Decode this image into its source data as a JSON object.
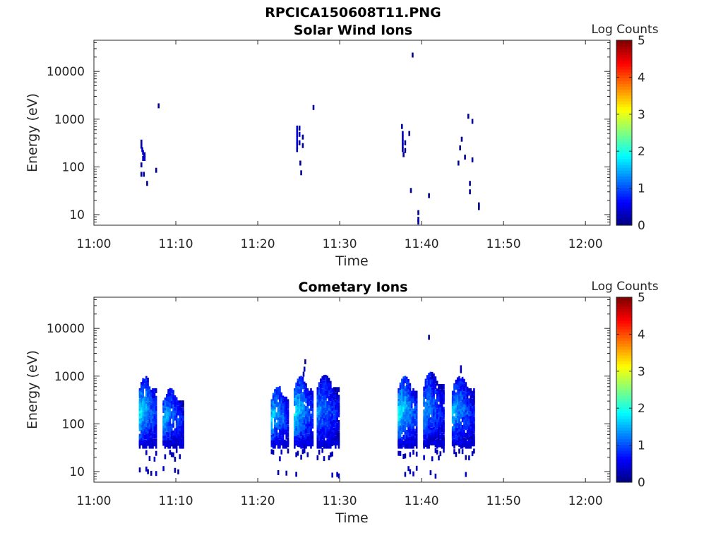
{
  "figure": {
    "title": "RPCICA150608T11.PNG"
  },
  "chart_data": [
    {
      "type": "heatmap",
      "title": "Solar Wind Ions",
      "xlabel": "Time",
      "ylabel": "Energy (eV)",
      "xticks": [
        "11:00",
        "11:10",
        "11:20",
        "11:30",
        "11:40",
        "11:50",
        "12:00"
      ],
      "xlim_minutes": [
        0,
        63
      ],
      "yscale": "log",
      "ylim": [
        6,
        45000
      ],
      "yticks": [
        "10",
        "100",
        "1000",
        "10000"
      ],
      "colorbar": {
        "label": "Log Counts",
        "min": 0,
        "max": 5,
        "ticks": [
          "0",
          "1",
          "2",
          "3",
          "4",
          "5"
        ]
      },
      "cells": [
        [
          5.8,
          330,
          0.2
        ],
        [
          5.8,
          270,
          0.3
        ],
        [
          5.9,
          230,
          0.3
        ],
        [
          6.0,
          200,
          0.4
        ],
        [
          6.1,
          170,
          0.3
        ],
        [
          6.0,
          150,
          0.4
        ],
        [
          6.2,
          180,
          0.2
        ],
        [
          6.2,
          150,
          0.3
        ],
        [
          5.8,
          110,
          0.2
        ],
        [
          5.8,
          70,
          0.2
        ],
        [
          6.1,
          70,
          0.2
        ],
        [
          6.5,
          45,
          0.1
        ],
        [
          7.6,
          85,
          0.1
        ],
        [
          7.9,
          1900,
          0.1
        ],
        [
          24.8,
          650,
          0.3
        ],
        [
          24.8,
          550,
          0.4
        ],
        [
          24.8,
          450,
          0.4
        ],
        [
          24.8,
          380,
          0.5
        ],
        [
          24.8,
          320,
          0.4
        ],
        [
          24.8,
          270,
          0.3
        ],
        [
          24.8,
          230,
          0.2
        ],
        [
          25.1,
          650,
          0.2
        ],
        [
          25.1,
          480,
          0.3
        ],
        [
          25.1,
          320,
          0.2
        ],
        [
          25.5,
          420,
          0.1
        ],
        [
          25.5,
          280,
          0.1
        ],
        [
          25.2,
          120,
          0.1
        ],
        [
          25.3,
          75,
          0.1
        ],
        [
          26.8,
          1750,
          0.1
        ],
        [
          37.6,
          700,
          0.2
        ],
        [
          37.7,
          500,
          0.3
        ],
        [
          37.7,
          400,
          0.3
        ],
        [
          37.7,
          330,
          0.3
        ],
        [
          37.7,
          280,
          0.3
        ],
        [
          37.7,
          230,
          0.2
        ],
        [
          37.8,
          180,
          0.2
        ],
        [
          38.0,
          320,
          0.1
        ],
        [
          38.0,
          220,
          0.1
        ],
        [
          38.5,
          500,
          0.1
        ],
        [
          38.7,
          32,
          0.1
        ],
        [
          38.9,
          22000,
          0.1
        ],
        [
          39.6,
          11,
          0.1
        ],
        [
          39.6,
          8,
          0.1
        ],
        [
          39.6,
          7,
          0.2
        ],
        [
          40.9,
          25,
          0.1
        ],
        [
          44.5,
          120,
          0.1
        ],
        [
          44.7,
          250,
          0.1
        ],
        [
          44.9,
          380,
          0.1
        ],
        [
          45.3,
          160,
          0.1
        ],
        [
          45.7,
          1150,
          0.1
        ],
        [
          45.9,
          45,
          0.1
        ],
        [
          45.9,
          30,
          0.1
        ],
        [
          46.2,
          900,
          0.1
        ],
        [
          46.2,
          140,
          0.1
        ],
        [
          47.0,
          16,
          0.1
        ],
        [
          47.0,
          14,
          0.1
        ]
      ]
    },
    {
      "type": "heatmap",
      "title": "Cometary Ions",
      "xlabel": "Time",
      "ylabel": "Energy (eV)",
      "xticks": [
        "11:00",
        "11:10",
        "11:20",
        "11:30",
        "11:40",
        "11:50",
        "12:00"
      ],
      "xlim_minutes": [
        0,
        63
      ],
      "yscale": "log",
      "ylim": [
        6,
        45000
      ],
      "yticks": [
        "10",
        "100",
        "1000",
        "10000"
      ],
      "colorbar": {
        "label": "Log Counts",
        "min": 0,
        "max": 5,
        "ticks": [
          "0",
          "1",
          "2",
          "3",
          "4",
          "5"
        ]
      },
      "bursts": [
        {
          "center_minutes": 6.7,
          "duration_minutes": 2.2,
          "top_ev": 900,
          "peak": 1.9
        },
        {
          "center_minutes": 9.8,
          "duration_minutes": 2.6,
          "top_ev": 500,
          "peak": 1.6
        },
        {
          "center_minutes": 22.8,
          "duration_minutes": 2.2,
          "top_ev": 600,
          "peak": 1.8
        },
        {
          "center_minutes": 25.7,
          "duration_minutes": 2.4,
          "top_ev": 900,
          "peak": 1.9
        },
        {
          "center_minutes": 28.7,
          "duration_minutes": 2.8,
          "top_ev": 950,
          "peak": 1.4
        },
        {
          "center_minutes": 38.4,
          "duration_minutes": 2.4,
          "top_ev": 900,
          "peak": 2.0
        },
        {
          "center_minutes": 41.6,
          "duration_minutes": 2.6,
          "top_ev": 1100,
          "peak": 1.5
        },
        {
          "center_minutes": 45.2,
          "duration_minutes": 2.8,
          "top_ev": 900,
          "peak": 1.6
        }
      ],
      "isolated": [
        [
          25.8,
          2000,
          0.1
        ],
        [
          25.7,
          1400,
          0.2
        ],
        [
          25.6,
          1100,
          0.2
        ],
        [
          40.9,
          6500,
          0.1
        ],
        [
          41.3,
          1000,
          0.1
        ],
        [
          44.8,
          1500,
          0.3
        ],
        [
          44.8,
          1300,
          0.2
        ],
        [
          42.5,
          600,
          0.1
        ]
      ]
    }
  ]
}
